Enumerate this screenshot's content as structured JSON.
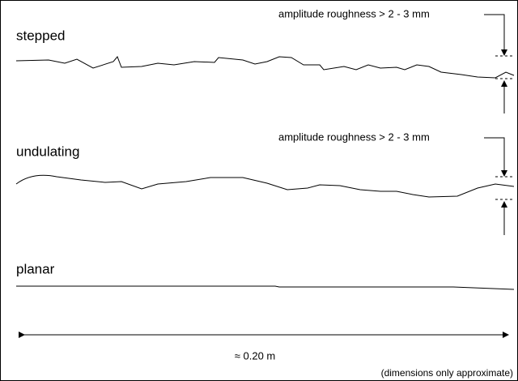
{
  "profiles": [
    {
      "label": "stepped",
      "annotation": "amplitude roughness > 2 - 3 mm"
    },
    {
      "label": "undulating",
      "annotation": "amplitude roughness > 2 - 3 mm"
    },
    {
      "label": "planar"
    }
  ],
  "scale": {
    "label": "≈ 0.20 m"
  },
  "note": "(dimensions only approximate)"
}
